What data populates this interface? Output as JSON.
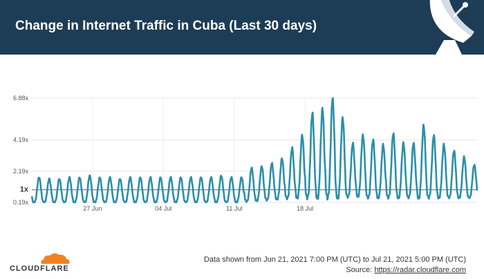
{
  "header": {
    "title": "Change in Internet Traffic in Cuba (Last 30 days)",
    "background_color": "#1d3c56",
    "icon": "satellite-dish-icon"
  },
  "chart_data": {
    "type": "line",
    "title": "Change in Internet Traffic in Cuba (Last 30 days)",
    "xlabel": "",
    "ylabel": "",
    "y_ticks": [
      {
        "label": "6.88x",
        "value": 6.88
      },
      {
        "label": "4.19x",
        "value": 4.19
      },
      {
        "label": "2.19x",
        "value": 2.19
      },
      {
        "label": "1x",
        "value": 1
      },
      {
        "label": "0.19x",
        "value": 0.19
      }
    ],
    "x_ticks": [
      {
        "label": "27 Jun",
        "day": 6
      },
      {
        "label": "04 Jul",
        "day": 13
      },
      {
        "label": "11 Jul",
        "day": 20
      },
      {
        "label": "18 Jul",
        "day": 27
      }
    ],
    "x_start": "Jun 21, 2021 7:00 PM (UTC)",
    "x_end": "Jul 21, 2021 5:00 PM (UTC)",
    "baseline": 1,
    "grid": true,
    "line_color": "#2a8fab",
    "series": [
      {
        "daily_max": [
          1.8,
          1.7,
          1.7,
          1.8,
          1.8,
          1.9,
          1.8,
          1.8,
          1.7,
          1.8,
          1.8,
          1.8,
          1.8,
          1.8,
          1.8,
          1.8,
          1.8,
          1.8,
          1.9,
          1.8,
          1.8,
          2.4,
          2.5,
          2.7,
          3.0,
          3.7,
          4.5,
          5.9,
          6.2,
          6.9,
          5.6,
          4.0,
          4.5,
          4.2,
          3.9,
          4.6,
          4.0,
          4.0,
          5.1,
          4.5,
          3.9,
          3.5,
          3.1,
          2.6
        ],
        "daily_min": [
          0.2,
          0.2,
          0.2,
          0.2,
          0.2,
          0.2,
          0.2,
          0.2,
          0.2,
          0.2,
          0.2,
          0.2,
          0.2,
          0.2,
          0.2,
          0.2,
          0.2,
          0.2,
          0.2,
          0.2,
          0.2,
          0.25,
          0.3,
          0.35,
          0.4,
          0.45,
          0.5,
          0.5,
          0.5,
          0.5,
          0.5,
          0.55,
          0.6,
          0.5,
          0.5,
          0.5,
          0.5,
          0.5,
          0.5,
          0.5,
          0.5,
          0.5,
          0.5,
          0.5
        ]
      }
    ]
  },
  "footer": {
    "logo_text": "CLOUDFLARE",
    "note": "Data shown from Jun 21, 2021 7:00 PM (UTC) to Jul 21, 2021 5:00 PM (UTC)",
    "source_label": "Source: ",
    "source_link": "https://radar.cloudflare.com",
    "logo_color": "#f38020"
  }
}
